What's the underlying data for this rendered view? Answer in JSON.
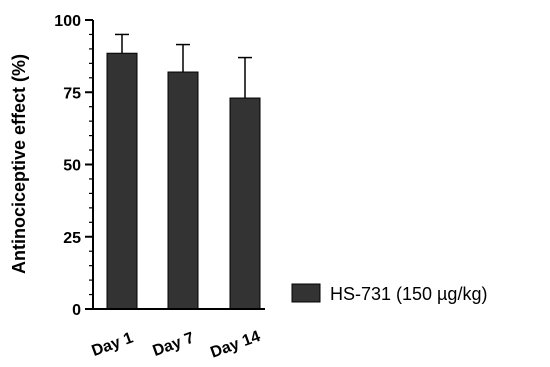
{
  "chart_data": {
    "type": "bar",
    "categories": [
      "Day 1",
      "Day 7",
      "Day 14"
    ],
    "series": [
      {
        "name": "HS-731 (150 µg/kg)",
        "values": [
          88.5,
          82,
          73
        ],
        "error": [
          6.5,
          9.5,
          14
        ],
        "color": "#333333"
      }
    ],
    "ylabel": "Antinociceptive effect (%)",
    "xlabel": "",
    "ylim": [
      0,
      100
    ],
    "yticks": [
      0,
      25,
      50,
      75,
      100
    ],
    "minor_yticks": [
      5,
      10,
      15,
      20,
      30,
      35,
      40,
      45,
      55,
      60,
      65,
      70,
      80,
      85,
      90,
      95
    ],
    "legend_position": "right",
    "grid": false
  }
}
